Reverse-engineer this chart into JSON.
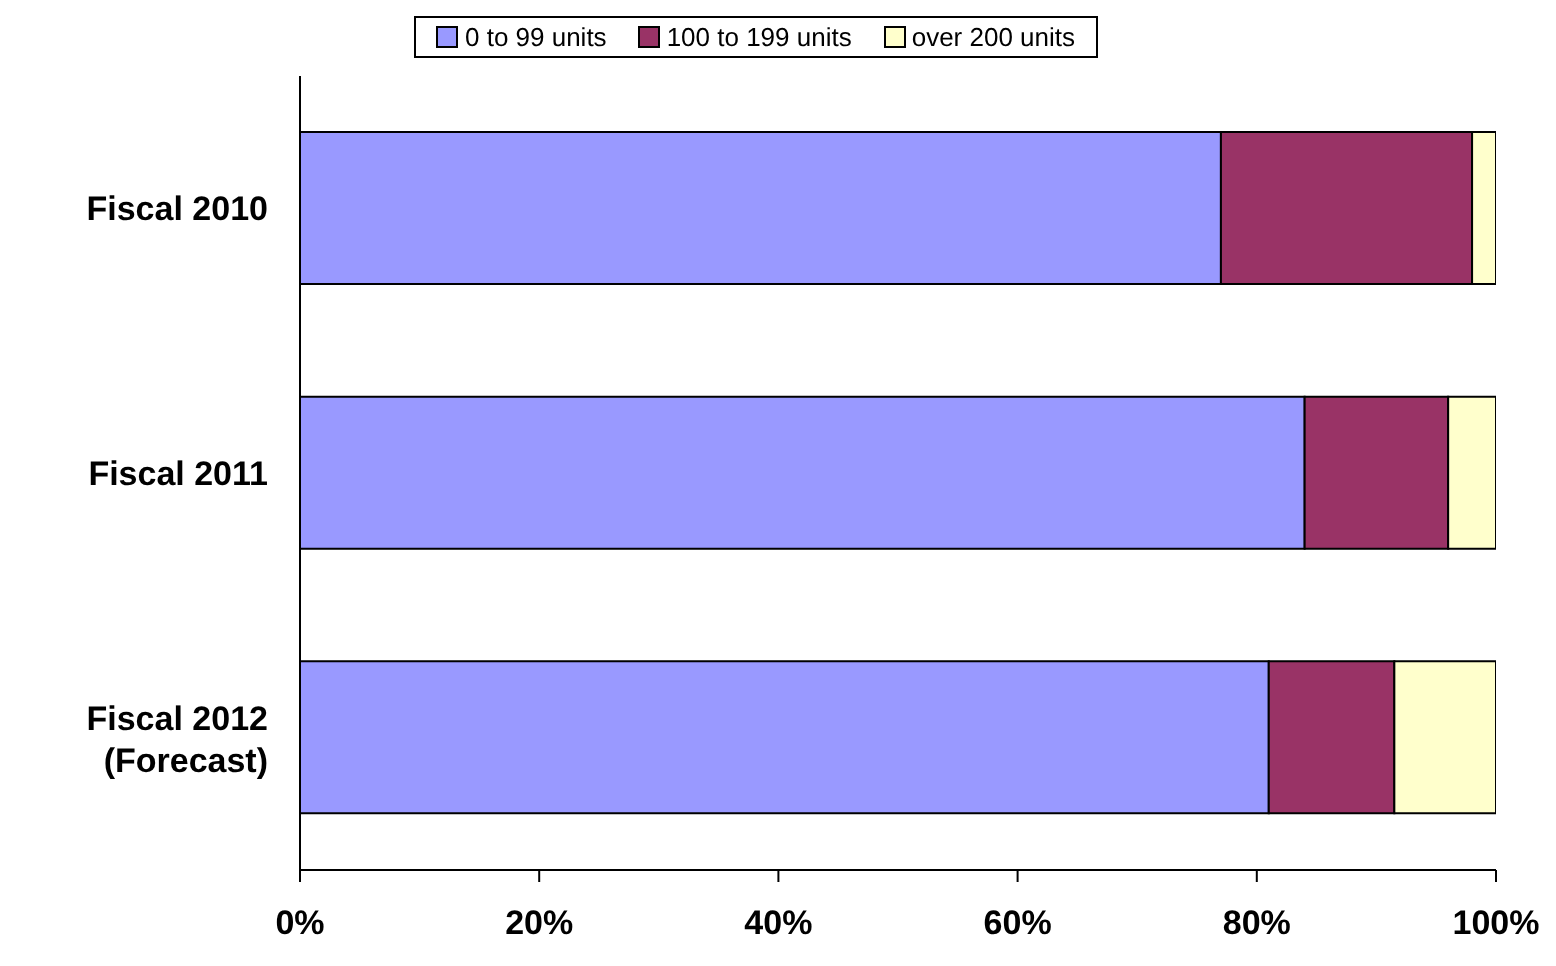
{
  "chart_data": {
    "type": "bar",
    "orientation": "horizontal",
    "stacked": true,
    "categories": [
      "Fiscal 2010",
      "Fiscal 2011",
      "Fiscal 2012\n(Forecast)"
    ],
    "series": [
      {
        "name": "0 to 99 units",
        "color": "#9999ff",
        "values": [
          77,
          84,
          81
        ]
      },
      {
        "name": "100 to 199 units",
        "color": "#993366",
        "values": [
          21,
          12,
          10.5
        ]
      },
      {
        "name": "over 200 units",
        "color": "#ffffcc",
        "values": [
          2,
          4,
          8.5
        ]
      }
    ],
    "xlim": [
      0,
      100
    ],
    "xticks": [
      {
        "value": 0,
        "label": "0%"
      },
      {
        "value": 20,
        "label": "20%"
      },
      {
        "value": 40,
        "label": "40%"
      },
      {
        "value": 60,
        "label": "60%"
      },
      {
        "value": 80,
        "label": "80%"
      },
      {
        "value": 100,
        "label": "100%"
      }
    ],
    "grid": false,
    "legend": "top"
  }
}
